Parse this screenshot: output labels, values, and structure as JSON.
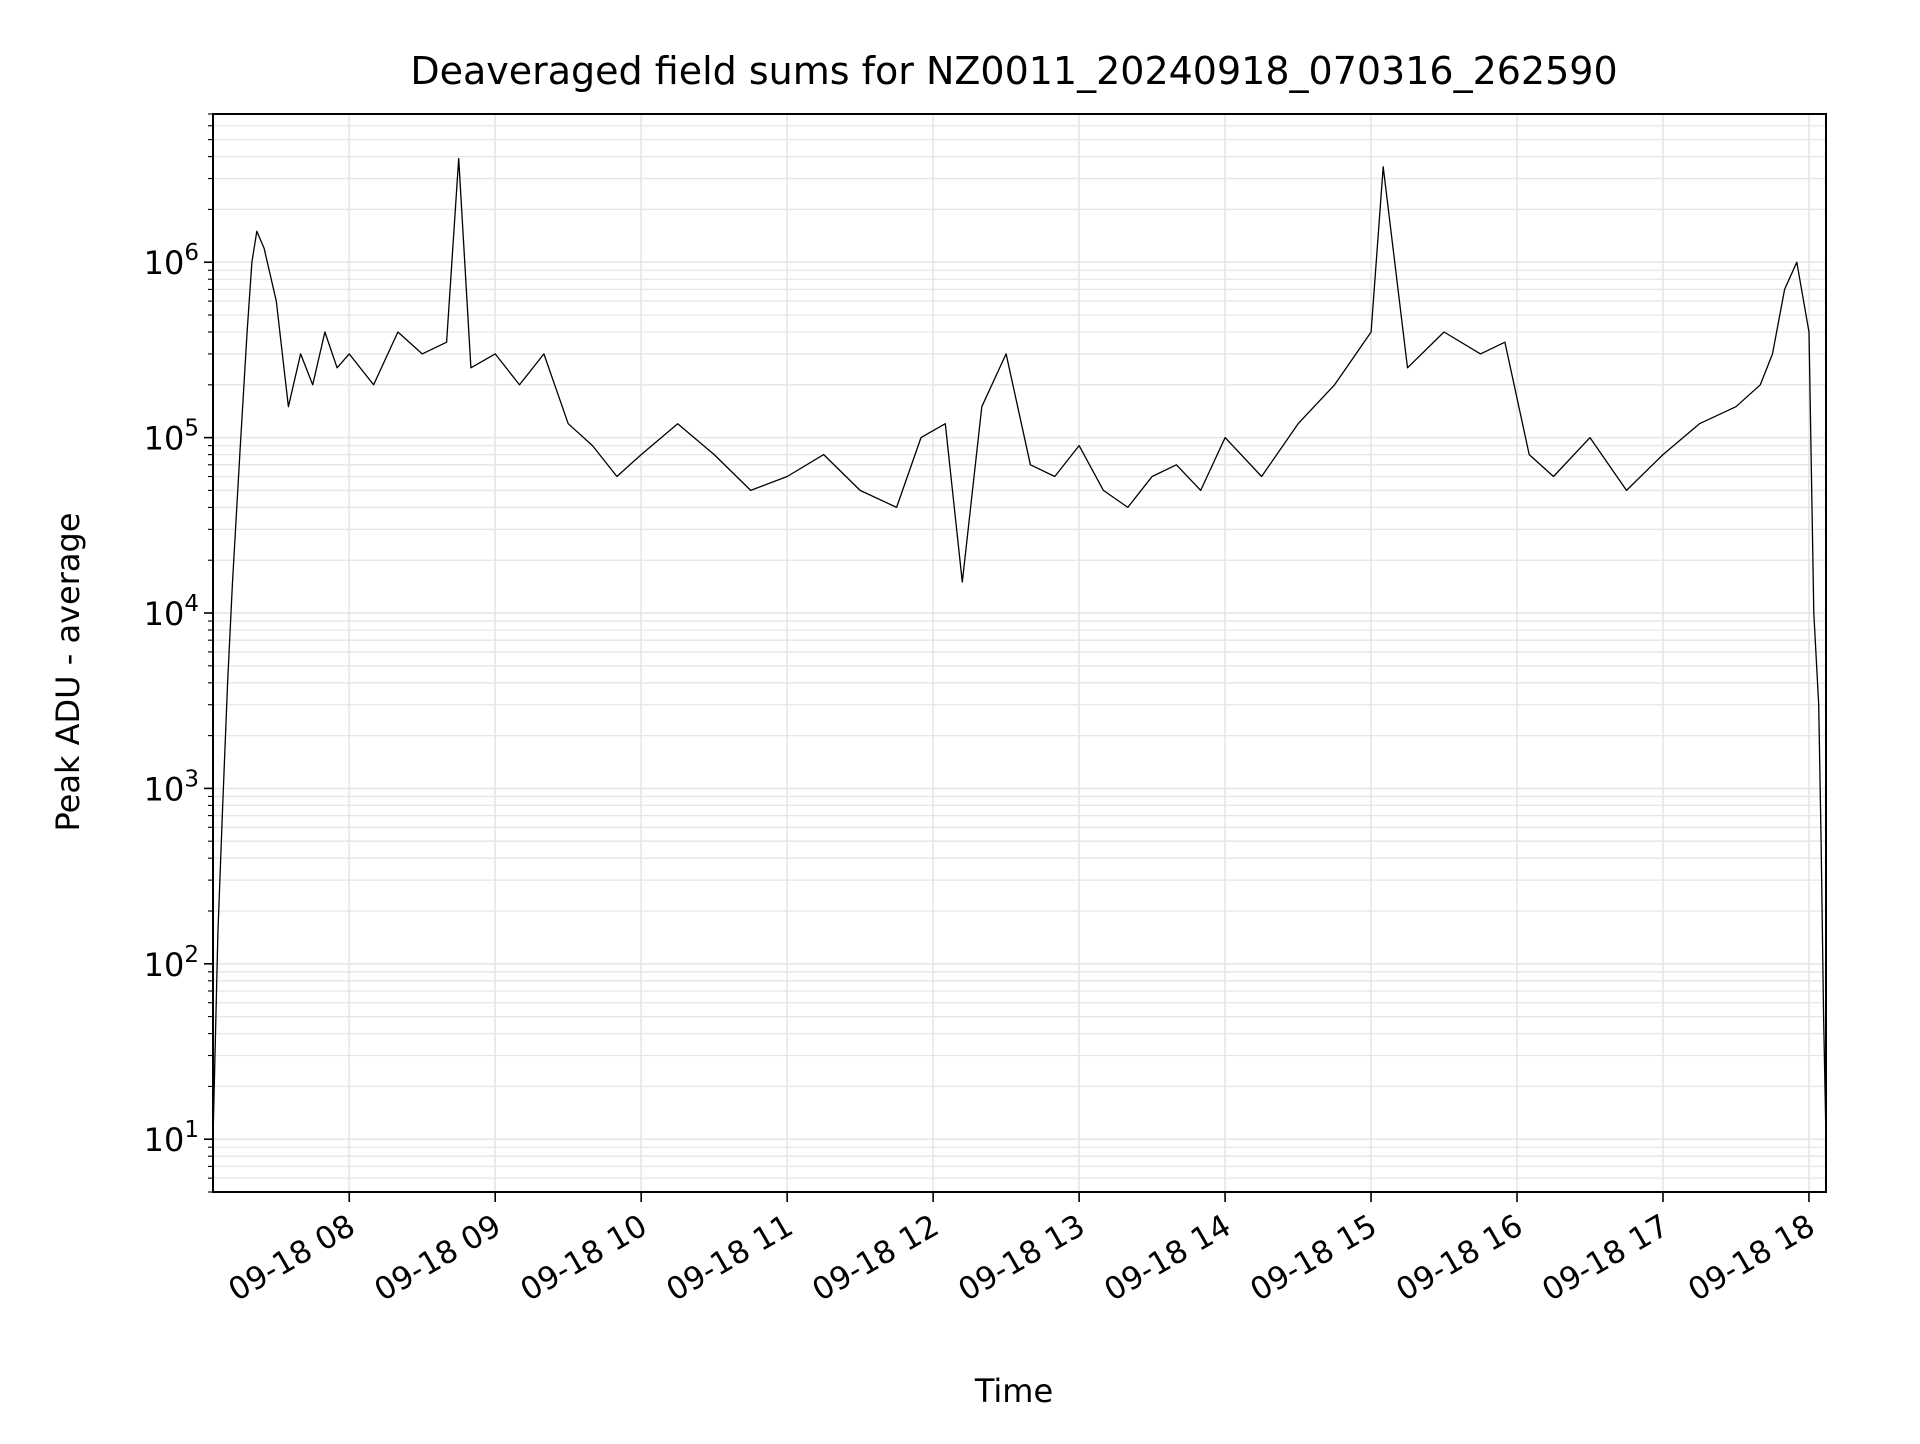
{
  "chart_data": {
    "type": "line",
    "title": "Deaveraged field sums for NZ0011_20240918_070316_262590",
    "xlabel": "Time",
    "ylabel": "Peak ADU - average",
    "yscale": "log",
    "ylim": [
      5,
      7000000
    ],
    "xlim": [
      "2024-09-18 07:04",
      "2024-09-18 18:07"
    ],
    "grid": "major and minor, both axes",
    "x_tick_labels": [
      "09-18 08",
      "09-18 09",
      "09-18 10",
      "09-18 11",
      "09-18 12",
      "09-18 13",
      "09-18 14",
      "09-18 15",
      "09-18 16",
      "09-18 17",
      "09-18 18"
    ],
    "y_tick_labels": [
      {
        "base": "10",
        "exp": "1"
      },
      {
        "base": "10",
        "exp": "2"
      },
      {
        "base": "10",
        "exp": "3"
      },
      {
        "base": "10",
        "exp": "4"
      },
      {
        "base": "10",
        "exp": "5"
      },
      {
        "base": "10",
        "exp": "6"
      }
    ],
    "line_color": "#000000",
    "grid_color": "#e6e6e6",
    "series": [
      {
        "x": [
          "07:04",
          "07:06",
          "07:08",
          "07:10",
          "07:12",
          "07:15",
          "07:18",
          "07:20",
          "07:22",
          "07:25",
          "07:30",
          "07:35",
          "07:40",
          "07:45",
          "07:50",
          "07:55",
          "08:00",
          "08:10",
          "08:20",
          "08:30",
          "08:40",
          "08:45",
          "08:50",
          "09:00",
          "09:10",
          "09:20",
          "09:30",
          "09:40",
          "09:50",
          "10:00",
          "10:15",
          "10:30",
          "10:45",
          "11:00",
          "11:15",
          "11:30",
          "11:45",
          "11:55",
          "12:05",
          "12:12",
          "12:20",
          "12:30",
          "12:40",
          "12:50",
          "13:00",
          "13:10",
          "13:20",
          "13:30",
          "13:40",
          "13:50",
          "14:00",
          "14:15",
          "14:30",
          "14:45",
          "15:00",
          "15:05",
          "15:15",
          "15:30",
          "15:45",
          "15:55",
          "16:05",
          "16:15",
          "16:30",
          "16:45",
          "17:00",
          "17:15",
          "17:30",
          "17:40",
          "17:45",
          "17:50",
          "17:55",
          "18:00",
          "18:02",
          "18:04",
          "18:05",
          "18:06",
          "18:07"
        ],
        "y": [
          10,
          150,
          800,
          4000,
          15000,
          80000,
          400000,
          1000000,
          1500000,
          1200000,
          600000,
          150000,
          300000,
          200000,
          400000,
          250000,
          300000,
          200000,
          400000,
          300000,
          350000,
          3900000,
          250000,
          300000,
          200000,
          300000,
          120000,
          90000,
          60000,
          80000,
          120000,
          80000,
          50000,
          60000,
          80000,
          50000,
          40000,
          100000,
          120000,
          15000,
          150000,
          300000,
          70000,
          60000,
          90000,
          50000,
          40000,
          60000,
          70000,
          50000,
          100000,
          60000,
          120000,
          200000,
          400000,
          3500000,
          250000,
          400000,
          300000,
          350000,
          80000,
          60000,
          100000,
          50000,
          80000,
          120000,
          150000,
          200000,
          300000,
          700000,
          1000000,
          400000,
          10000,
          3000,
          500,
          50,
          10
        ]
      }
    ]
  }
}
